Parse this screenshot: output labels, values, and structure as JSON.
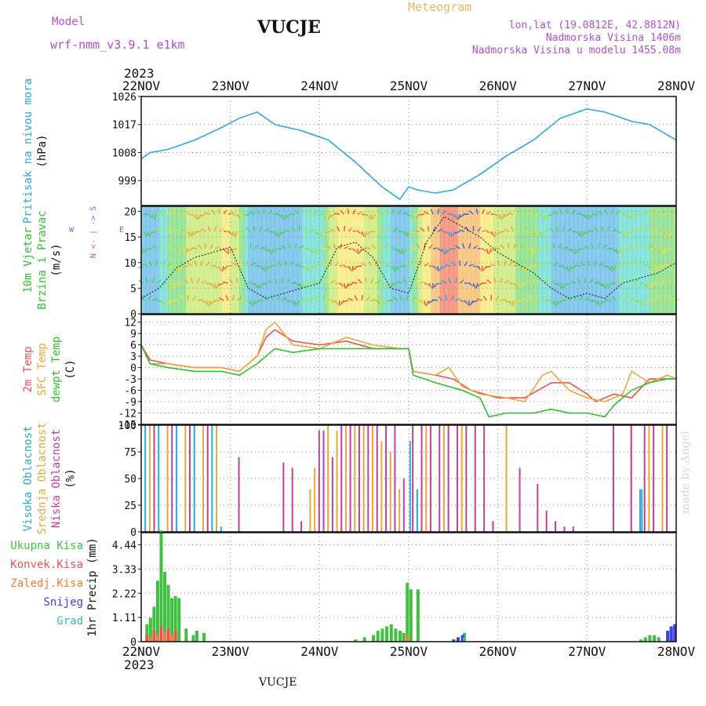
{
  "header": {
    "model_label": "Model",
    "model_name": "wrf-nmm_v3.9.1 e1km",
    "station": "VUCJE",
    "product": "Meteogram",
    "lonlat": "lon,lat (19.0812E, 42.8812N)",
    "altitude": "Nadmorska Visina 1406m",
    "model_altitude": "Nadmorska Visina u modelu 1455.08m",
    "year_top": "2023",
    "year_bottom": "2023",
    "footer_station": "VUCJE",
    "watermark": "made by Angel"
  },
  "colors": {
    "pressure": "#29a9e0",
    "temp2m": "#f05050",
    "sfc": "#e8a838",
    "dewpt": "#30c030",
    "high_cloud": "#29a9e0",
    "mid_cloud": "#e8a838",
    "low_cloud": "#c040a0",
    "total_precip": "#40c040",
    "conv_precip": "#f05050",
    "frz_precip": "#f08030",
    "snow": "#4040e0",
    "graupel": "#30c0b0",
    "title_purple": "#b050d0",
    "title_gold": "#e8b860"
  },
  "chart_data": [
    {
      "type": "line",
      "panel": "pressure",
      "title": "",
      "ylabel": [
        "Pritisak na nivou mora",
        "(hPa)"
      ],
      "ylim": [
        991,
        1026
      ],
      "yticks": [
        "1026",
        "1017",
        "1008",
        "999"
      ],
      "xticks": [
        "22NOV",
        "23NOV",
        "24NOV",
        "25NOV",
        "26NOV",
        "27NOV",
        "28NOV"
      ],
      "grid": true,
      "series": [
        {
          "name": "",
          "x": [
            0,
            0.1,
            0.3,
            0.6,
            0.9,
            1.1,
            1.3,
            1.5,
            1.8,
            2.1,
            2.4,
            2.7,
            2.9,
            3.0,
            3.1,
            3.3,
            3.5,
            3.8,
            4.1,
            4.4,
            4.7,
            5.0,
            5.2,
            5.4,
            5.5,
            5.7,
            6.0
          ],
          "y": [
            1006,
            1008,
            1009,
            1012,
            1016,
            1019,
            1021,
            1017,
            1015,
            1012,
            1005,
            997,
            993,
            997,
            996,
            995,
            996,
            1001,
            1007,
            1012,
            1019,
            1022,
            1021,
            1019,
            1018,
            1017,
            1012
          ]
        }
      ]
    },
    {
      "type": "line",
      "panel": "wind",
      "ylabel": [
        "10m Vjetar",
        "Brzina i Pravac",
        "(m/s)"
      ],
      "direction_legend": [
        "N",
        "S",
        "W",
        "E"
      ],
      "ylim": [
        0,
        21
      ],
      "yticks": [
        "20",
        "15",
        "10",
        "5",
        "0"
      ],
      "grid": true,
      "series": [
        {
          "name": "",
          "x": [
            0,
            0.2,
            0.4,
            0.6,
            0.8,
            1.0,
            1.2,
            1.4,
            1.6,
            1.8,
            2.0,
            2.2,
            2.4,
            2.6,
            2.8,
            3.0,
            3.2,
            3.4,
            3.6,
            3.8,
            4.0,
            4.2,
            4.4,
            4.6,
            4.8,
            5.0,
            5.2,
            5.4,
            5.6,
            5.8,
            6.0
          ],
          "y": [
            3,
            5,
            9,
            11,
            12,
            13,
            5,
            3,
            4,
            5,
            6,
            13,
            14,
            11,
            5,
            4,
            14,
            19,
            17,
            15,
            12,
            10,
            8,
            5,
            3,
            4,
            3,
            6,
            7,
            8,
            10
          ]
        }
      ]
    },
    {
      "type": "line",
      "panel": "temperature",
      "ylabel": [
        "2m Temp",
        "SFC Temp",
        "dewpt Temp",
        "(C)"
      ],
      "ylim": [
        -15,
        14
      ],
      "yticks": [
        "12",
        "9",
        "6",
        "3",
        "0",
        "-3",
        "-6",
        "-9",
        "-12",
        "-15"
      ],
      "grid": true,
      "series": [
        {
          "name": "2m Temp",
          "x": [
            0,
            0.1,
            0.3,
            0.6,
            0.9,
            1.1,
            1.3,
            1.4,
            1.5,
            1.7,
            2.0,
            2.3,
            2.6,
            2.9,
            3.0,
            3.05,
            3.3,
            3.5,
            3.7,
            4.0,
            4.3,
            4.6,
            4.8,
            5.0,
            5.1,
            5.3,
            5.5,
            5.7,
            5.9,
            6.0
          ],
          "y": [
            6,
            2,
            1,
            0,
            0,
            -1,
            3,
            8,
            10,
            7,
            6,
            7,
            5,
            5,
            5,
            -1,
            -2,
            -3,
            -6,
            -8,
            -8,
            -4,
            -4,
            -7,
            -9,
            -7,
            -8,
            -3,
            -3,
            -3
          ]
        },
        {
          "name": "SFC Temp",
          "x": [
            0,
            0.1,
            0.3,
            0.6,
            0.9,
            1.1,
            1.3,
            1.4,
            1.5,
            1.7,
            2.0,
            2.3,
            2.6,
            2.9,
            3.0,
            3.05,
            3.3,
            3.45,
            3.6,
            3.8,
            4.1,
            4.3,
            4.5,
            4.6,
            4.8,
            5.0,
            5.2,
            5.4,
            5.5,
            5.7,
            5.9,
            6.0
          ],
          "y": [
            6,
            1,
            1,
            0,
            0,
            -1,
            3,
            10,
            12,
            6,
            5,
            8,
            6,
            5,
            5,
            -1,
            -2,
            0,
            -5,
            -7,
            -8,
            -9,
            -2,
            -1,
            -6,
            -8,
            -9,
            -7,
            -1,
            -4,
            -2,
            -3
          ]
        },
        {
          "name": "dewpt Temp",
          "x": [
            0,
            0.1,
            0.3,
            0.6,
            0.9,
            1.1,
            1.3,
            1.5,
            1.7,
            2.0,
            2.3,
            2.6,
            2.9,
            3.0,
            3.05,
            3.3,
            3.6,
            3.8,
            3.9,
            4.1,
            4.4,
            4.6,
            4.8,
            5.0,
            5.2,
            5.3,
            5.5,
            5.7,
            5.9,
            6.0
          ],
          "y": [
            6,
            1,
            0,
            -1,
            -1,
            -2,
            1,
            5,
            4,
            5,
            5,
            5,
            5,
            5,
            -2,
            -4,
            -6,
            -8,
            -13,
            -12,
            -12,
            -11,
            -12,
            -12,
            -13,
            -10,
            -6,
            -4,
            -3,
            -3
          ]
        }
      ]
    },
    {
      "type": "bar",
      "panel": "cloud",
      "ylabel": [
        "Visoka Oblacnost",
        "Srednja Oblacnost",
        "Niska Oblacnost",
        "(%)"
      ],
      "ylim": [
        0,
        100
      ],
      "yticks": [
        "100",
        "75",
        "50",
        "25",
        "0"
      ],
      "grid": true,
      "series": [
        {
          "name": "Visoka Oblacnost",
          "x": [
            0.05,
            0.2,
            0.4,
            0.6,
            0.8,
            0.9,
            3.02,
            3.1,
            5.6,
            5.62
          ],
          "values": [
            100,
            100,
            100,
            100,
            100,
            5,
            85,
            40,
            40,
            40
          ]
        },
        {
          "name": "Srednja Oblacnost",
          "x": [
            0.1,
            0.3,
            0.5,
            0.7,
            0.85,
            1.9,
            1.95,
            2.1,
            2.2,
            2.3,
            2.4,
            2.5,
            2.6,
            2.7,
            2.8,
            2.9,
            3.2,
            3.4,
            3.6,
            4.1,
            5.5,
            5.7,
            5.85
          ],
          "values": [
            100,
            100,
            100,
            100,
            100,
            40,
            60,
            100,
            95,
            100,
            100,
            100,
            100,
            85,
            75,
            40,
            100,
            100,
            100,
            100,
            100,
            100,
            100
          ]
        },
        {
          "name": "Niska Oblacnost",
          "x": [
            0.15,
            0.35,
            0.55,
            0.75,
            1.1,
            1.6,
            1.7,
            1.8,
            2.0,
            2.05,
            2.15,
            2.25,
            2.35,
            2.45,
            2.55,
            2.65,
            2.75,
            2.85,
            2.95,
            3.05,
            3.15,
            3.25,
            3.35,
            3.45,
            3.55,
            3.65,
            3.75,
            3.85,
            3.95,
            4.25,
            4.45,
            4.55,
            4.65,
            4.75,
            4.85,
            5.3,
            5.5,
            5.65,
            5.75,
            5.9
          ],
          "values": [
            100,
            100,
            100,
            100,
            70,
            65,
            60,
            10,
            95,
            95,
            70,
            100,
            100,
            100,
            100,
            100,
            100,
            100,
            50,
            100,
            100,
            100,
            100,
            100,
            100,
            100,
            100,
            100,
            10,
            60,
            45,
            20,
            10,
            5,
            5,
            100,
            100,
            100,
            100,
            100
          ]
        }
      ]
    },
    {
      "type": "bar",
      "panel": "precip",
      "ylabel": [
        "1hr Precip (mm)"
      ],
      "legend": [
        "Ukupna Kisa",
        "Konvek.Kisa",
        "Zaledj.Kisa",
        "Snijeg",
        "Grad"
      ],
      "ylim": [
        0,
        5.0
      ],
      "yticks": [
        "4.44",
        "3.33",
        "2.22",
        "1.11",
        "0"
      ],
      "xticks": [
        "22NOV",
        "23NOV",
        "24NOV",
        "25NOV",
        "26NOV",
        "27NOV",
        "28NOV"
      ],
      "grid": true,
      "series": [
        {
          "name": "Ukupna Kisa",
          "x": [
            0.06,
            0.1,
            0.14,
            0.18,
            0.22,
            0.26,
            0.3,
            0.34,
            0.38,
            0.42,
            0.5,
            0.58,
            0.62,
            0.7,
            2.4,
            2.5,
            2.6,
            2.65,
            2.7,
            2.75,
            2.8,
            2.85,
            2.9,
            2.94,
            2.98,
            3.02,
            3.1,
            3.5,
            3.55,
            3.6,
            3.62,
            5.6,
            5.65,
            5.7,
            5.75,
            5.8,
            5.9,
            5.94,
            5.98
          ],
          "values": [
            0.8,
            1.1,
            1.6,
            2.8,
            5.1,
            3.2,
            2.6,
            2.0,
            2.1,
            2.0,
            0.6,
            0.3,
            0.5,
            0.4,
            0.1,
            0.2,
            0.3,
            0.5,
            0.6,
            0.7,
            0.8,
            0.6,
            0.5,
            0.4,
            2.7,
            2.4,
            2.4,
            0.1,
            0.2,
            0.3,
            0.4,
            0.1,
            0.2,
            0.3,
            0.3,
            0.2,
            0.5,
            0.7,
            0.8
          ]
        },
        {
          "name": "Konvek.Kisa",
          "x": [
            0.06,
            0.14,
            0.22,
            0.3,
            0.38
          ],
          "values": [
            0.3,
            0.5,
            0.7,
            0.6,
            0.5
          ]
        },
        {
          "name": "Zaledj.Kisa",
          "x": [
            0.1,
            0.18,
            0.26,
            0.34,
            2.98
          ],
          "values": [
            0.2,
            0.3,
            0.4,
            0.3,
            0.3
          ]
        },
        {
          "name": "Snijeg",
          "x": [
            3.5,
            3.55,
            3.6,
            5.9,
            5.94,
            5.98
          ],
          "values": [
            0.1,
            0.2,
            0.3,
            0.5,
            0.7,
            0.8
          ]
        },
        {
          "name": "Grad",
          "x": [
            3.62
          ],
          "values": [
            0.2
          ]
        }
      ]
    }
  ]
}
